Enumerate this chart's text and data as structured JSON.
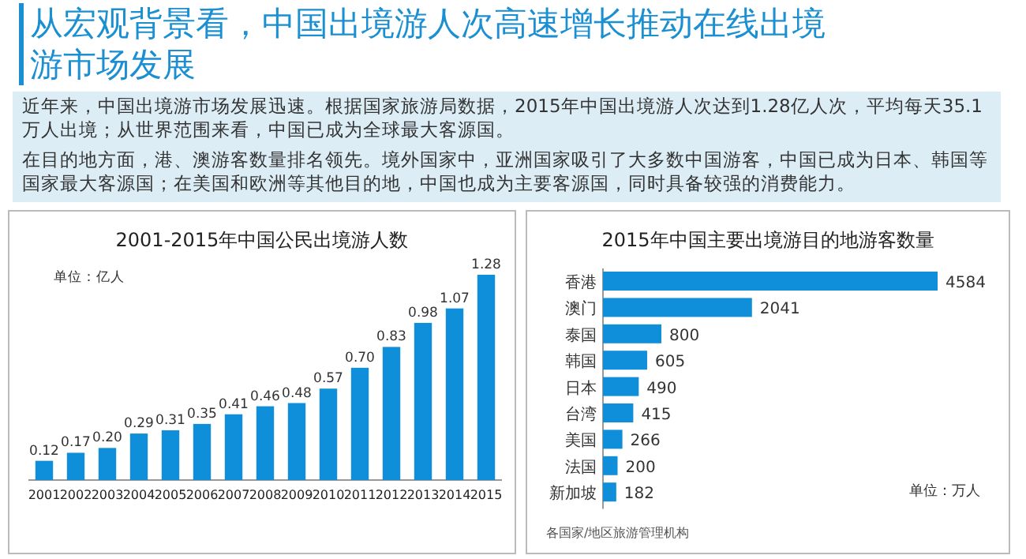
{
  "chart_data": [
    {
      "type": "other",
      "title": "从宏观背景看，中国出境游人次高速增长推动在线出境游市场发展",
      "annotations": [
        "近年来，中国出境游市场发展迅速。根据国家旅游局数据，2015年中国出境游人次达到1.28亿人次，平均每天35.1万人出境；从世界范围来看，中国已成为全球最大客源国。",
        "在目的地方面，港、澳游客数量排名领先。境外国家中，亚洲国家吸引了大多数中国游客，中国已成为日本、韩国等国家最大客源国；在美国和欧洲等其他目的地，中国也成为主要客源国，同时具备较强的消费能力。"
      ]
    },
    {
      "type": "bar",
      "title": "2001-2015年中国公民出境游人数",
      "annotations": [
        "单位：亿人"
      ],
      "categories": [
        "2001",
        "2002",
        "2003",
        "2004",
        "2005",
        "2006",
        "2007",
        "2008",
        "2009",
        "2010",
        "2011",
        "2012",
        "2013",
        "2014",
        "2015"
      ],
      "values": [
        0.12,
        0.17,
        0.2,
        0.29,
        0.31,
        0.35,
        0.41,
        0.46,
        0.48,
        0.57,
        0.7,
        0.83,
        0.98,
        1.07,
        1.28
      ],
      "value_labels": [
        "0.12",
        "0.17",
        "0.20",
        "0.29",
        "0.31",
        "0.35",
        "0.41",
        "0.46",
        "0.48",
        "0.57",
        "0.70",
        "0.83",
        "0.98",
        "1.07",
        "1.28"
      ],
      "color": "#0f8fd9"
    },
    {
      "type": "bar",
      "orientation": "horizontal",
      "title": "2015年中国主要出境游目的地游客数量",
      "annotations": [
        "单位：万人",
        "各国家/地区旅游管理机构"
      ],
      "categories": [
        "香港",
        "澳门",
        "泰国",
        "韩国",
        "日本",
        "台湾",
        "美国",
        "法国",
        "新加坡"
      ],
      "values": [
        4584,
        2041,
        800,
        605,
        490,
        415,
        266,
        200,
        182
      ],
      "data_labels": true,
      "color": "#0f8fd9"
    }
  ]
}
